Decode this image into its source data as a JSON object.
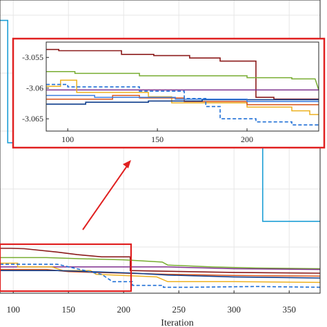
{
  "chart_data": [
    {
      "type": "line",
      "role": "main",
      "xlabel": "Iteration",
      "ylabel": "",
      "title": "",
      "xlim": [
        88,
        378
      ],
      "ylim": [
        -3.0676,
        -2.9885
      ],
      "x_ticks": [
        100,
        150,
        200,
        250,
        300,
        350
      ],
      "x_tick_labels": [
        "100",
        "150",
        "200",
        "250",
        "300",
        "350"
      ],
      "grid": true,
      "series": [
        {
          "color": "#1f9fd6",
          "width": 1.6,
          "dash": "",
          "points": [
            [
              88,
              -2.994
            ],
            [
              95,
              -2.994
            ],
            [
              95,
              -3.027
            ],
            [
              326,
              -3.027
            ],
            [
              326,
              -3.0482
            ],
            [
              378,
              -3.0482
            ]
          ]
        },
        {
          "color": "#8b1a1a",
          "width": 1.6,
          "dash": "",
          "points": [
            [
              88,
              -3.0555
            ],
            [
              98,
              -3.0555
            ],
            [
              110,
              -3.0556
            ],
            [
              140,
              -3.0565
            ],
            [
              158,
              -3.0572
            ],
            [
              180,
              -3.0578
            ],
            [
              206,
              -3.0578
            ],
            [
              206,
              -3.0615
            ],
            [
              260,
              -3.0618
            ],
            [
              300,
              -3.062
            ],
            [
              378,
              -3.0622
            ]
          ]
        },
        {
          "color": "#77ac30",
          "width": 1.5,
          "dash": "",
          "points": [
            [
              88,
              -3.058
            ],
            [
              130,
              -3.058
            ],
            [
              160,
              -3.0583
            ],
            [
              200,
              -3.0586
            ],
            [
              235,
              -3.0592
            ],
            [
              240,
              -3.06
            ],
            [
              280,
              -3.0605
            ],
            [
              320,
              -3.0608
            ],
            [
              378,
              -3.061
            ]
          ]
        },
        {
          "color": "#7e2f8e",
          "width": 1.5,
          "dash": "",
          "points": [
            [
              88,
              -3.0605
            ],
            [
              240,
              -3.0605
            ],
            [
              300,
              -3.061
            ],
            [
              378,
              -3.0612
            ]
          ]
        },
        {
          "color": "#edb120",
          "width": 1.5,
          "dash": "",
          "points": [
            [
              88,
              -3.0595
            ],
            [
              104,
              -3.0595
            ],
            [
              104,
              -3.0605
            ],
            [
              135,
              -3.0605
            ],
            [
              145,
              -3.0615
            ],
            [
              170,
              -3.0615
            ],
            [
              175,
              -3.0625
            ],
            [
              230,
              -3.0632
            ],
            [
              240,
              -3.0645
            ],
            [
              300,
              -3.0645
            ],
            [
              378,
              -3.0647
            ]
          ]
        },
        {
          "color": "#d95319",
          "width": 1.5,
          "dash": "",
          "points": [
            [
              88,
              -3.0612
            ],
            [
              130,
              -3.0612
            ],
            [
              150,
              -3.0618
            ],
            [
              200,
              -3.0622
            ],
            [
              240,
              -3.0625
            ],
            [
              300,
              -3.0628
            ],
            [
              378,
              -3.063
            ]
          ]
        },
        {
          "color": "#0f3d8c",
          "width": 1.6,
          "dash": "",
          "points": [
            [
              88,
              -3.0615
            ],
            [
              140,
              -3.0615
            ],
            [
              170,
              -3.0618
            ],
            [
              210,
              -3.0622
            ],
            [
              240,
              -3.0627
            ],
            [
              300,
              -3.0632
            ],
            [
              378,
              -3.0635
            ]
          ]
        },
        {
          "color": "#1f6fd6",
          "width": 1.6,
          "dash": "5,3",
          "points": [
            [
              88,
              -3.0598
            ],
            [
              140,
              -3.0598
            ],
            [
              165,
              -3.0615
            ],
            [
              180,
              -3.0625
            ],
            [
              190,
              -3.0645
            ],
            [
              208,
              -3.0645
            ],
            [
              208,
              -3.0655
            ],
            [
              236,
              -3.0655
            ],
            [
              236,
              -3.066
            ],
            [
              260,
              -3.066
            ],
            [
              320,
              -3.0658
            ],
            [
              378,
              -3.066
            ]
          ]
        }
      ]
    },
    {
      "type": "line",
      "role": "zoom-inset",
      "xlim": [
        88,
        240
      ],
      "ylim": [
        -3.067,
        -3.0525
      ],
      "x_ticks": [
        100,
        150,
        200
      ],
      "x_tick_labels": [
        "100",
        "150",
        "200"
      ],
      "y_ticks": [
        -3.055,
        -3.06,
        -3.065
      ],
      "y_tick_labels": [
        "-3.055",
        "-3.06",
        "-3.065"
      ],
      "grid": false,
      "series": [
        {
          "color": "#8b1a1a",
          "width": 1.6,
          "dash": "",
          "points": [
            [
              88,
              -3.0537
            ],
            [
              95,
              -3.0537
            ],
            [
              95,
              -3.0539
            ],
            [
              130,
              -3.0539
            ],
            [
              130,
              -3.0545
            ],
            [
              148,
              -3.0545
            ],
            [
              148,
              -3.0547
            ],
            [
              168,
              -3.0547
            ],
            [
              168,
              -3.0551
            ],
            [
              185,
              -3.0551
            ],
            [
              185,
              -3.0556
            ],
            [
              205,
              -3.0556
            ],
            [
              205,
              -3.0615
            ],
            [
              215,
              -3.0615
            ],
            [
              215,
              -3.0618
            ],
            [
              240,
              -3.0618
            ]
          ]
        },
        {
          "color": "#77ac30",
          "width": 1.5,
          "dash": "",
          "points": [
            [
              88,
              -3.0573
            ],
            [
              104,
              -3.0573
            ],
            [
              104,
              -3.0576
            ],
            [
              140,
              -3.0576
            ],
            [
              140,
              -3.058
            ],
            [
              200,
              -3.058
            ],
            [
              200,
              -3.0583
            ],
            [
              225,
              -3.0583
            ],
            [
              225,
              -3.0585
            ],
            [
              238,
              -3.0585
            ],
            [
              240,
              -3.0603
            ]
          ]
        },
        {
          "color": "#7e2f8e",
          "width": 1.5,
          "dash": "",
          "points": [
            [
              88,
              -3.0603
            ],
            [
              240,
              -3.0603
            ]
          ]
        },
        {
          "color": "#edb120",
          "width": 1.5,
          "dash": "",
          "points": [
            [
              88,
              -3.0597
            ],
            [
              96,
              -3.0597
            ],
            [
              96,
              -3.0587
            ],
            [
              105,
              -3.0587
            ],
            [
              105,
              -3.0607
            ],
            [
              145,
              -3.0607
            ],
            [
              145,
              -3.0614
            ],
            [
              158,
              -3.0614
            ],
            [
              158,
              -3.0624
            ],
            [
              200,
              -3.0624
            ],
            [
              200,
              -3.0631
            ],
            [
              225,
              -3.0631
            ],
            [
              225,
              -3.0637
            ],
            [
              235,
              -3.0637
            ],
            [
              235,
              -3.0643
            ],
            [
              240,
              -3.0643
            ]
          ]
        },
        {
          "color": "#d95319",
          "width": 1.5,
          "dash": "",
          "points": [
            [
              88,
              -3.0618
            ],
            [
              125,
              -3.0618
            ],
            [
              125,
              -3.0612
            ],
            [
              140,
              -3.0612
            ],
            [
              140,
              -3.0616
            ],
            [
              165,
              -3.0616
            ],
            [
              165,
              -3.0622
            ],
            [
              200,
              -3.0622
            ],
            [
              200,
              -3.0627
            ],
            [
              240,
              -3.0627
            ]
          ]
        },
        {
          "color": "#0f3d8c",
          "width": 1.6,
          "dash": "",
          "points": [
            [
              88,
              -3.0626
            ],
            [
              110,
              -3.0626
            ],
            [
              110,
              -3.0623
            ],
            [
              145,
              -3.0623
            ],
            [
              145,
              -3.0621
            ],
            [
              175,
              -3.0621
            ],
            [
              175,
              -3.0619
            ],
            [
              240,
              -3.0619
            ]
          ]
        },
        {
          "color": "#3a7de0",
          "width": 1.5,
          "dash": "",
          "points": [
            [
              88,
              -3.0612
            ],
            [
              115,
              -3.0612
            ],
            [
              115,
              -3.0615
            ],
            [
              160,
              -3.0615
            ],
            [
              160,
              -3.0618
            ],
            [
              200,
              -3.0618
            ],
            [
              200,
              -3.0622
            ],
            [
              240,
              -3.0622
            ]
          ]
        },
        {
          "color": "#1f6fd6",
          "width": 1.6,
          "dash": "5,3",
          "points": [
            [
              88,
              -3.0594
            ],
            [
              100,
              -3.0594
            ],
            [
              100,
              -3.0598
            ],
            [
              140,
              -3.0598
            ],
            [
              140,
              -3.0605
            ],
            [
              165,
              -3.0605
            ],
            [
              165,
              -3.0617
            ],
            [
              177,
              -3.0617
            ],
            [
              177,
              -3.063
            ],
            [
              185,
              -3.063
            ],
            [
              185,
              -3.065
            ],
            [
              205,
              -3.065
            ],
            [
              205,
              -3.0655
            ],
            [
              225,
              -3.0655
            ],
            [
              225,
              -3.066
            ],
            [
              240,
              -3.066
            ]
          ]
        }
      ]
    }
  ],
  "colors": {
    "highlight_box": "#e02020",
    "arrow": "#e02020",
    "grid": "#e6e6e6",
    "axis": "#262626"
  }
}
